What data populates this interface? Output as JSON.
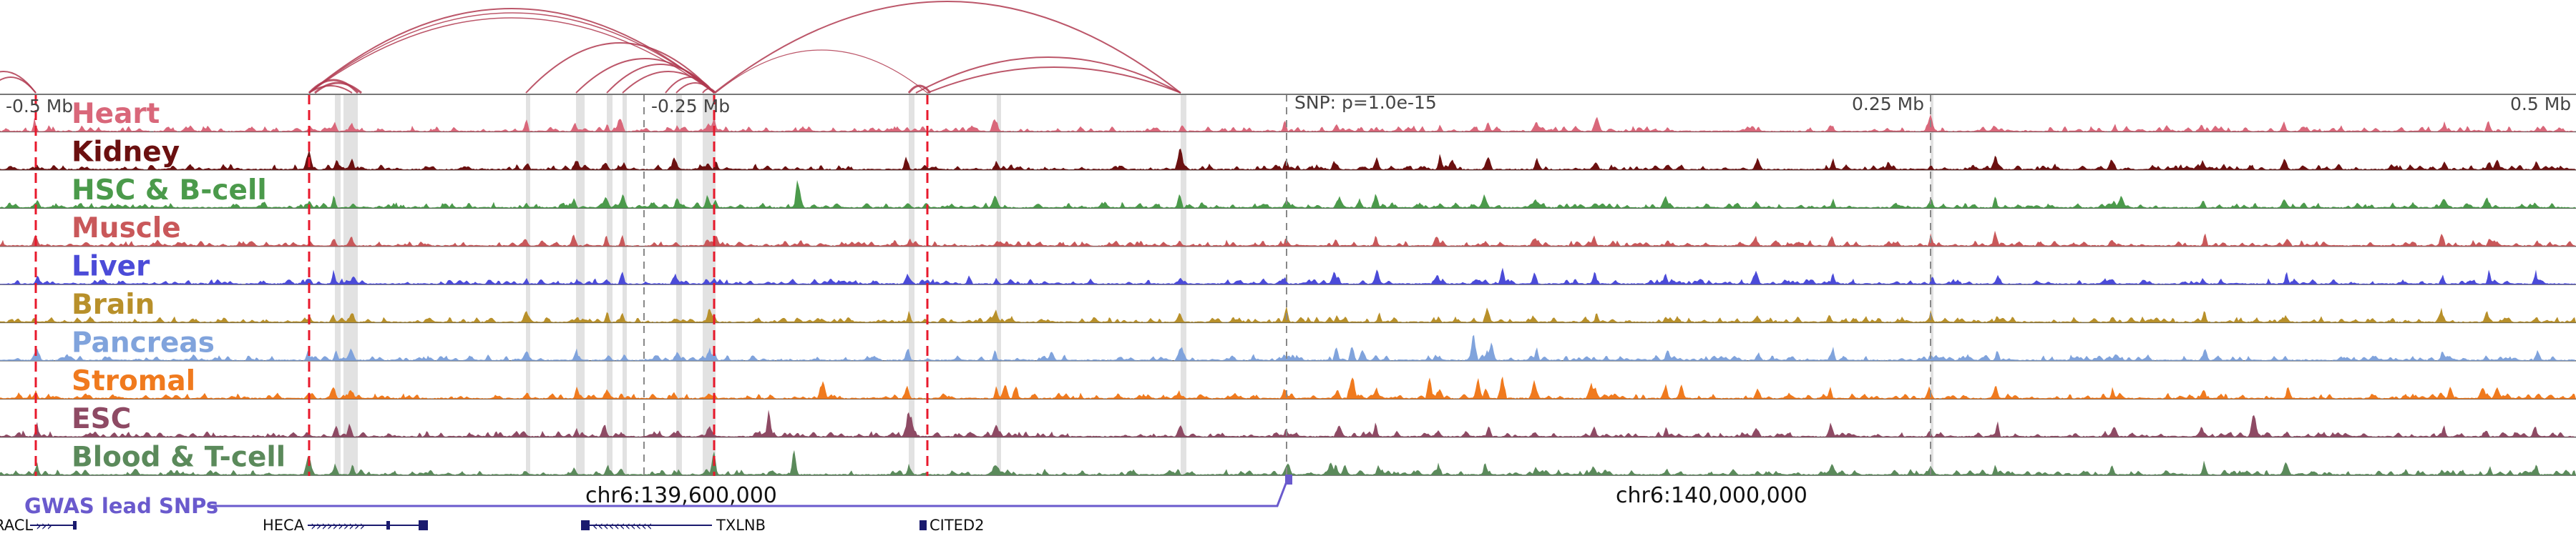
{
  "region_axis": {
    "tick_labels": [
      "-0.5 Mb",
      "-0.25 Mb",
      "0.25 Mb",
      "0.5 Mb"
    ],
    "snp_label": "SNP: p=1.0e-15"
  },
  "tracks": [
    {
      "label": "Heart",
      "color": "#d9677a"
    },
    {
      "label": "Kidney",
      "color": "#6b1010"
    },
    {
      "label": "HSC & B-cell",
      "color": "#4b9a4b"
    },
    {
      "label": "Muscle",
      "color": "#c9585a"
    },
    {
      "label": "Liver",
      "color": "#4b4bd8"
    },
    {
      "label": "Brain",
      "color": "#b8902a"
    },
    {
      "label": "Pancreas",
      "color": "#80a3dc"
    },
    {
      "label": "Stromal",
      "color": "#f07a1e"
    },
    {
      "label": "ESC",
      "color": "#8e4a64"
    },
    {
      "label": "Blood & T-cell",
      "color": "#5b8a5b"
    }
  ],
  "coordinates": {
    "left_label": "chr6:139,600,000",
    "right_label": "chr6:140,000,000"
  },
  "gwas": {
    "label": "GWAS lead SNPs",
    "color": "#6a5acd"
  },
  "genes": [
    {
      "name": "RACL"
    },
    {
      "name": "HECA"
    },
    {
      "name": "TXLNB"
    },
    {
      "name": "CITED2"
    }
  ],
  "colors": {
    "loop_arc": "#b03a50",
    "highlight_line": "#e8192c",
    "highlight_band": "#d8d8d8"
  }
}
